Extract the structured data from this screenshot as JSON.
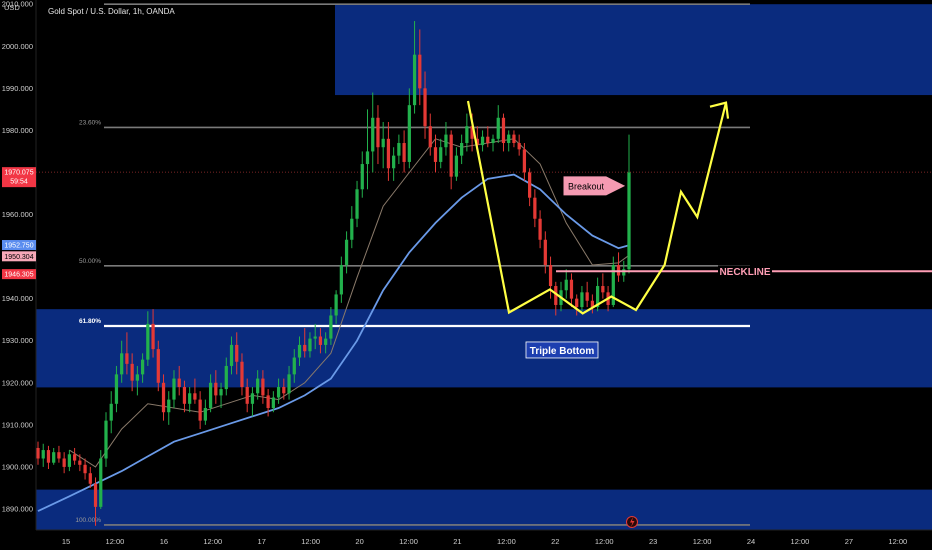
{
  "header": {
    "title": "Gold Spot / U.S. Dollar, 1h, OANDA",
    "currency": "USD"
  },
  "chart_data": {
    "type": "candlestick",
    "ylim": [
      1885,
      2011
    ],
    "y_ticks": [
      {
        "v": 2010,
        "label": "2010.000"
      },
      {
        "v": 2000,
        "label": "2000.000"
      },
      {
        "v": 1990,
        "label": "1990.000"
      },
      {
        "v": 1980,
        "label": "1980.000"
      },
      {
        "v": 1960,
        "label": "1960.000"
      },
      {
        "v": 1940,
        "label": "1940.000"
      },
      {
        "v": 1930,
        "label": "1930.000"
      },
      {
        "v": 1920,
        "label": "1920.000"
      },
      {
        "v": 1910,
        "label": "1910.000"
      },
      {
        "v": 1900,
        "label": "1900.000"
      },
      {
        "v": 1890,
        "label": "1890.000"
      }
    ],
    "x_ticks": [
      "15",
      "12:00",
      "16",
      "12:00",
      "17",
      "12:00",
      "20",
      "12:00",
      "21",
      "12:00",
      "22",
      "12:00",
      "23",
      "12:00",
      "24",
      "12:00",
      "27",
      "12:00"
    ],
    "price_tags": [
      {
        "label": "1970.075",
        "sub": "59:54",
        "v": 1970.075,
        "color": "#f23645",
        "text": "#ffffff"
      },
      {
        "label": "1952.750",
        "v": 1952.75,
        "color": "#5b8def",
        "text": "#ffffff"
      },
      {
        "label": "1950.304",
        "v": 1950.304,
        "color": "#f7a8b8",
        "text": "#000000"
      },
      {
        "label": "1946.305",
        "v": 1946.305,
        "color": "#f23645",
        "text": "#ffffff"
      }
    ],
    "fib_levels": [
      {
        "label": "",
        "v": 2010
      },
      {
        "label": "23.60%",
        "v": 1980.7
      },
      {
        "label": "50.00%",
        "v": 1947.8
      },
      {
        "label": "61.80%",
        "v": 1933.5
      },
      {
        "label": "100.00%",
        "v": 1886.2
      }
    ],
    "zones": [
      {
        "from": 1988.4,
        "to": 2010
      },
      {
        "from": 1918.9,
        "to": 1937.5
      },
      {
        "from": 1885,
        "to": 1894.6
      }
    ],
    "neckline": 1946.5,
    "current_price": 1970.075,
    "annotations": {
      "breakout": "Breakout",
      "neckline": "NECKLINE",
      "pattern": "Triple Bottom"
    },
    "colors": {
      "up": "#22b14c",
      "down": "#e53935",
      "zone": "#0a2b7e",
      "pattern": "#ffff44",
      "ma_fast": "#6a9ae8",
      "ma_slow": "#8a7a6a",
      "neckline": "#ff9eb5"
    },
    "candles": [
      [
        1904.5,
        1906,
        1900.5,
        1902
      ],
      [
        1902,
        1905.5,
        1900,
        1904
      ],
      [
        1904,
        1905,
        1899.5,
        1901
      ],
      [
        1901,
        1904.5,
        1900.5,
        1903.5
      ],
      [
        1903.5,
        1905,
        1901,
        1902
      ],
      [
        1902,
        1903.5,
        1898.5,
        1900
      ],
      [
        1900,
        1904,
        1899,
        1903
      ],
      [
        1903,
        1904.5,
        1900.5,
        1901.5
      ],
      [
        1901.5,
        1903,
        1899,
        1900.5
      ],
      [
        1900.5,
        1902,
        1897,
        1898.5
      ],
      [
        1898.5,
        1900,
        1895,
        1896
      ],
      [
        1896,
        1897.5,
        1886,
        1890.5
      ],
      [
        1890.5,
        1904,
        1890,
        1902
      ],
      [
        1902,
        1913,
        1900,
        1911
      ],
      [
        1911,
        1918,
        1908,
        1915
      ],
      [
        1915,
        1924,
        1913,
        1922
      ],
      [
        1922,
        1930,
        1920,
        1927
      ],
      [
        1927,
        1932,
        1922,
        1924.5
      ],
      [
        1924.5,
        1927,
        1918,
        1920.5
      ],
      [
        1920.5,
        1924,
        1917,
        1922
      ],
      [
        1922,
        1927,
        1920,
        1925.5
      ],
      [
        1925.5,
        1937,
        1924,
        1934
      ],
      [
        1934,
        1937.5,
        1926,
        1928
      ],
      [
        1928,
        1930,
        1918,
        1920
      ],
      [
        1920,
        1922,
        1911,
        1913
      ],
      [
        1913,
        1918,
        1910,
        1916
      ],
      [
        1916,
        1923,
        1914,
        1921
      ],
      [
        1921,
        1924,
        1917,
        1919
      ],
      [
        1919,
        1920.5,
        1913,
        1915
      ],
      [
        1915,
        1919,
        1913,
        1917.5
      ],
      [
        1917.5,
        1921,
        1915,
        1916
      ],
      [
        1916,
        1918,
        1909,
        1911
      ],
      [
        1911,
        1916,
        1910,
        1914
      ],
      [
        1914,
        1922,
        1913,
        1920
      ],
      [
        1920,
        1923,
        1915,
        1917
      ],
      [
        1917,
        1920,
        1914,
        1918.5
      ],
      [
        1918.5,
        1926,
        1917,
        1924
      ],
      [
        1924,
        1931,
        1922,
        1929
      ],
      [
        1929,
        1932,
        1922,
        1925
      ],
      [
        1925,
        1927,
        1917,
        1919
      ],
      [
        1919,
        1921,
        1913,
        1915
      ],
      [
        1915,
        1919,
        1912,
        1917.5
      ],
      [
        1917.5,
        1923,
        1916,
        1921
      ],
      [
        1921,
        1923,
        1915,
        1917
      ],
      [
        1917,
        1918.5,
        1912,
        1914
      ],
      [
        1914,
        1918,
        1913,
        1916.5
      ],
      [
        1916.5,
        1921,
        1915,
        1919
      ],
      [
        1919,
        1921,
        1916,
        1917.5
      ],
      [
        1917.5,
        1924,
        1916,
        1922
      ],
      [
        1922,
        1928,
        1920,
        1926
      ],
      [
        1926,
        1931,
        1924,
        1929
      ],
      [
        1929,
        1933,
        1926,
        1927.5
      ],
      [
        1927.5,
        1932,
        1926,
        1930.5
      ],
      [
        1930.5,
        1934,
        1928,
        1931
      ],
      [
        1931,
        1933,
        1927,
        1929
      ],
      [
        1929,
        1932,
        1927,
        1930.5
      ],
      [
        1930.5,
        1938,
        1929,
        1936
      ],
      [
        1936,
        1942,
        1934,
        1941
      ],
      [
        1941,
        1950,
        1939,
        1948
      ],
      [
        1948,
        1956,
        1946,
        1954
      ],
      [
        1954,
        1962,
        1952,
        1959
      ],
      [
        1959,
        1968,
        1957,
        1966
      ],
      [
        1966,
        1975,
        1964,
        1972
      ],
      [
        1972,
        1985,
        1966,
        1975
      ],
      [
        1975,
        1989,
        1970,
        1983
      ],
      [
        1983,
        1986,
        1972,
        1976
      ],
      [
        1976,
        1982,
        1971,
        1978
      ],
      [
        1978,
        1982,
        1968,
        1971
      ],
      [
        1971,
        1976,
        1968,
        1974
      ],
      [
        1974,
        1979,
        1972,
        1977
      ],
      [
        1977,
        1980,
        1970,
        1972.5
      ],
      [
        1972.5,
        1990,
        1971,
        1986
      ],
      [
        1986,
        2006,
        1984,
        1998
      ],
      [
        1998,
        2004,
        1986,
        1990
      ],
      [
        1990,
        1994,
        1978,
        1981
      ],
      [
        1981,
        1984,
        1974,
        1976
      ],
      [
        1976,
        1979,
        1970,
        1972.5
      ],
      [
        1972.5,
        1978,
        1971,
        1976
      ],
      [
        1976,
        1982,
        1974,
        1979
      ],
      [
        1979,
        1980,
        1966,
        1969
      ],
      [
        1969,
        1976,
        1968,
        1974
      ],
      [
        1974,
        1979,
        1972,
        1977
      ],
      [
        1977,
        1984,
        1975,
        1981
      ],
      [
        1981,
        1984,
        1975,
        1978
      ],
      [
        1978,
        1981,
        1975,
        1976.5
      ],
      [
        1976.5,
        1980,
        1975,
        1978.5
      ],
      [
        1978.5,
        1981,
        1976,
        1977
      ],
      [
        1977,
        1979,
        1975,
        1978
      ],
      [
        1978,
        1986,
        1977,
        1983
      ],
      [
        1983,
        1984,
        1975,
        1977
      ],
      [
        1977,
        1980,
        1975,
        1979
      ],
      [
        1979,
        1980,
        1976,
        1977
      ],
      [
        1977,
        1979,
        1974,
        1975.5
      ],
      [
        1975.5,
        1977,
        1968,
        1970
      ],
      [
        1970,
        1971,
        1962,
        1964
      ],
      [
        1964,
        1966,
        1957,
        1959
      ],
      [
        1959,
        1961,
        1952,
        1954
      ],
      [
        1954,
        1956,
        1946,
        1948
      ],
      [
        1948,
        1950,
        1940,
        1943
      ],
      [
        1943,
        1944,
        1936,
        1938.5
      ],
      [
        1938.5,
        1944,
        1937,
        1942
      ],
      [
        1942,
        1947,
        1940,
        1944.5
      ],
      [
        1944.5,
        1946,
        1938,
        1940
      ],
      [
        1940,
        1941,
        1936,
        1938
      ],
      [
        1938,
        1943,
        1937,
        1941.5
      ],
      [
        1941.5,
        1944,
        1938,
        1939.5
      ],
      [
        1939.5,
        1941,
        1936.5,
        1938
      ],
      [
        1938,
        1945,
        1937,
        1943
      ],
      [
        1943,
        1946,
        1940,
        1941.5
      ],
      [
        1941.5,
        1943,
        1937,
        1938.5
      ],
      [
        1938.5,
        1950,
        1938,
        1948
      ],
      [
        1948,
        1951,
        1944,
        1945.5
      ],
      [
        1945.5,
        1949,
        1944,
        1947
      ],
      [
        1947,
        1979,
        1946,
        1970
      ]
    ],
    "ma_fast": [
      [
        0,
        1889.5
      ],
      [
        6,
        1893
      ],
      [
        11,
        1896
      ],
      [
        16,
        1899
      ],
      [
        21,
        1902.5
      ],
      [
        26,
        1906
      ],
      [
        31,
        1908
      ],
      [
        36,
        1910
      ],
      [
        41,
        1912
      ],
      [
        46,
        1914
      ],
      [
        51,
        1917
      ],
      [
        56,
        1921
      ],
      [
        61,
        1930
      ],
      [
        66,
        1942
      ],
      [
        71,
        1951
      ],
      [
        76,
        1958
      ],
      [
        81,
        1964
      ],
      [
        86,
        1968.5
      ],
      [
        91,
        1969.5
      ],
      [
        96,
        1966
      ],
      [
        101,
        1960
      ],
      [
        106,
        1955
      ],
      [
        111,
        1952
      ],
      [
        113,
        1952.7
      ]
    ],
    "ma_slow": [
      [
        6,
        1904
      ],
      [
        11,
        1900
      ],
      [
        16,
        1909
      ],
      [
        21,
        1915
      ],
      [
        26,
        1914
      ],
      [
        31,
        1913
      ],
      [
        36,
        1915
      ],
      [
        41,
        1917
      ],
      [
        46,
        1916
      ],
      [
        51,
        1920
      ],
      [
        56,
        1927
      ],
      [
        61,
        1945
      ],
      [
        66,
        1962
      ],
      [
        71,
        1970
      ],
      [
        76,
        1978
      ],
      [
        81,
        1976
      ],
      [
        86,
        1977
      ],
      [
        91,
        1978
      ],
      [
        96,
        1972
      ],
      [
        101,
        1958
      ],
      [
        106,
        1948
      ],
      [
        111,
        1948.5
      ],
      [
        113,
        1950.3
      ]
    ],
    "pattern_path": [
      [
        1986.5,
        1987
      ],
      [
        1987.5,
        1936.7
      ],
      [
        1988.5,
        1942.2
      ],
      [
        1989.3,
        1936.5
      ],
      [
        1990,
        1940.5
      ],
      [
        1990.6,
        1937.3
      ],
      [
        1991.3,
        1948
      ],
      [
        1991.7,
        1965.4
      ],
      [
        1992.1,
        1959.4
      ],
      [
        1992.8,
        1986.6
      ]
    ]
  }
}
